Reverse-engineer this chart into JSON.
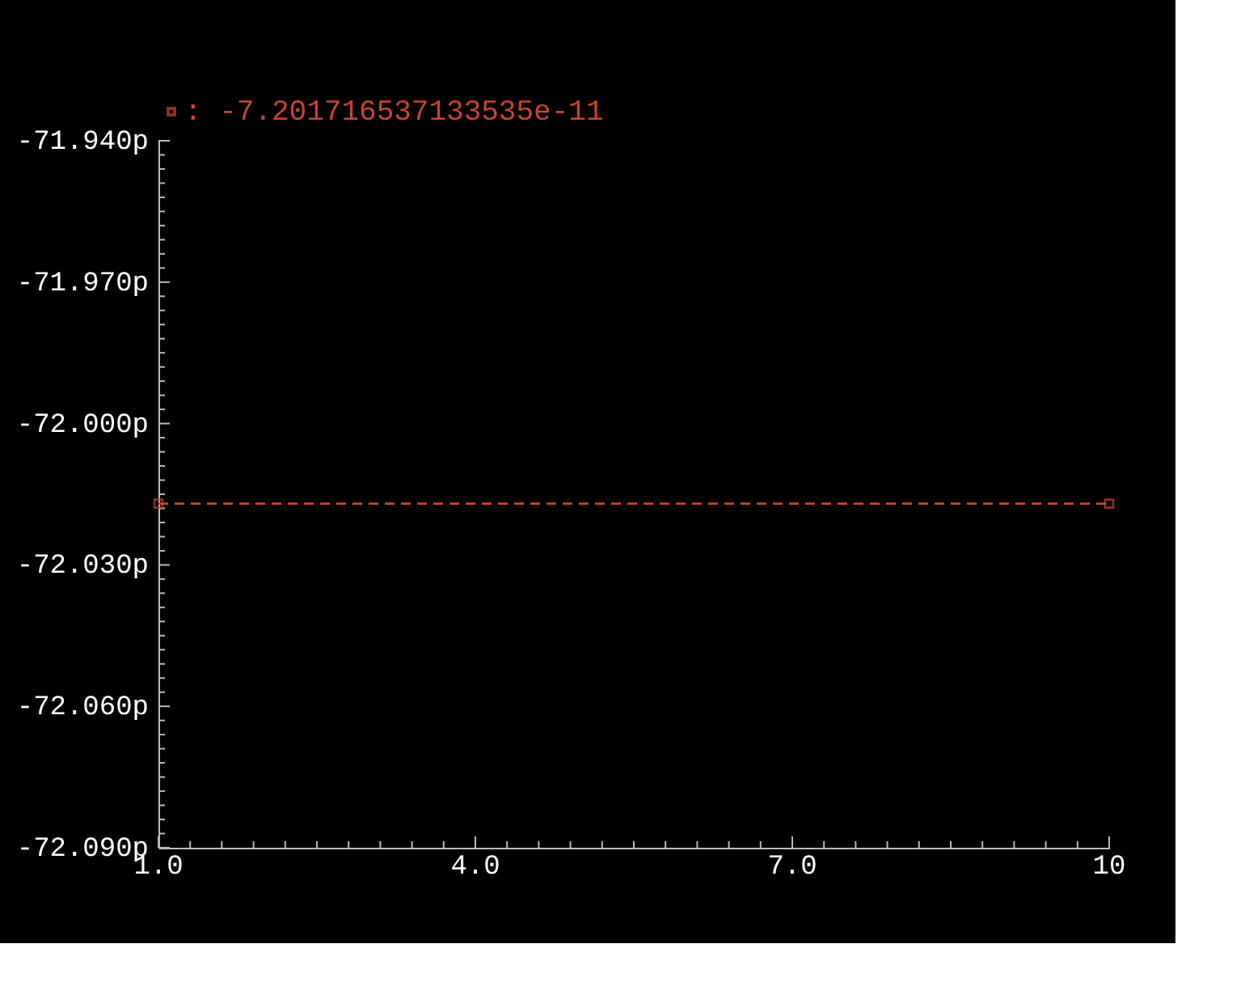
{
  "chart_data": {
    "type": "line",
    "x": [
      1,
      10
    ],
    "series": [
      {
        "name": ": -7.201716537133535e-11",
        "color": "#c8452f",
        "values": [
          -72.017,
          -72.017
        ]
      }
    ],
    "xlim": [
      1,
      10
    ],
    "xticks": [
      {
        "value": 1,
        "label": "1.0"
      },
      {
        "value": 1.3,
        "label": null
      },
      {
        "value": 1.6,
        "label": null
      },
      {
        "value": 1.9,
        "label": null
      },
      {
        "value": 2.2,
        "label": null
      },
      {
        "value": 2.5,
        "label": null
      },
      {
        "value": 2.8,
        "label": null
      },
      {
        "value": 3.1,
        "label": null
      },
      {
        "value": 3.4,
        "label": null
      },
      {
        "value": 3.7,
        "label": null
      },
      {
        "value": 4,
        "label": "4.0"
      },
      {
        "value": 4.3,
        "label": null
      },
      {
        "value": 4.6,
        "label": null
      },
      {
        "value": 4.9,
        "label": null
      },
      {
        "value": 5.2,
        "label": null
      },
      {
        "value": 5.5,
        "label": null
      },
      {
        "value": 5.8,
        "label": null
      },
      {
        "value": 6.1,
        "label": null
      },
      {
        "value": 6.4,
        "label": null
      },
      {
        "value": 6.7,
        "label": null
      },
      {
        "value": 7,
        "label": "7.0"
      },
      {
        "value": 7.3,
        "label": null
      },
      {
        "value": 7.6,
        "label": null
      },
      {
        "value": 7.9,
        "label": null
      },
      {
        "value": 8.2,
        "label": null
      },
      {
        "value": 8.5,
        "label": null
      },
      {
        "value": 8.8,
        "label": null
      },
      {
        "value": 9.1,
        "label": null
      },
      {
        "value": 9.4,
        "label": null
      },
      {
        "value": 9.7,
        "label": null
      },
      {
        "value": 10,
        "label": "10"
      }
    ],
    "ylim": [
      -72.09,
      -71.94
    ],
    "yticks": [
      {
        "value": -71.94,
        "label": "-71.940p"
      },
      {
        "value": -71.943,
        "label": null
      },
      {
        "value": -71.946,
        "label": null
      },
      {
        "value": -71.949,
        "label": null
      },
      {
        "value": -71.952,
        "label": null
      },
      {
        "value": -71.955,
        "label": null
      },
      {
        "value": -71.958,
        "label": null
      },
      {
        "value": -71.961,
        "label": null
      },
      {
        "value": -71.964,
        "label": null
      },
      {
        "value": -71.967,
        "label": null
      },
      {
        "value": -71.97,
        "label": "-71.970p"
      },
      {
        "value": -71.973,
        "label": null
      },
      {
        "value": -71.976,
        "label": null
      },
      {
        "value": -71.979,
        "label": null
      },
      {
        "value": -71.982,
        "label": null
      },
      {
        "value": -71.985,
        "label": null
      },
      {
        "value": -71.988,
        "label": null
      },
      {
        "value": -71.991,
        "label": null
      },
      {
        "value": -71.994,
        "label": null
      },
      {
        "value": -71.997,
        "label": null
      },
      {
        "value": -72.0,
        "label": "-72.000p"
      },
      {
        "value": -72.003,
        "label": null
      },
      {
        "value": -72.006,
        "label": null
      },
      {
        "value": -72.009,
        "label": null
      },
      {
        "value": -72.012,
        "label": null
      },
      {
        "value": -72.015,
        "label": null
      },
      {
        "value": -72.018,
        "label": null
      },
      {
        "value": -72.021,
        "label": null
      },
      {
        "value": -72.024,
        "label": null
      },
      {
        "value": -72.027,
        "label": null
      },
      {
        "value": -72.03,
        "label": "-72.030p"
      },
      {
        "value": -72.033,
        "label": null
      },
      {
        "value": -72.036,
        "label": null
      },
      {
        "value": -72.039,
        "label": null
      },
      {
        "value": -72.042,
        "label": null
      },
      {
        "value": -72.045,
        "label": null
      },
      {
        "value": -72.048,
        "label": null
      },
      {
        "value": -72.051,
        "label": null
      },
      {
        "value": -72.054,
        "label": null
      },
      {
        "value": -72.057,
        "label": null
      },
      {
        "value": -72.06,
        "label": "-72.060p"
      },
      {
        "value": -72.063,
        "label": null
      },
      {
        "value": -72.066,
        "label": null
      },
      {
        "value": -72.069,
        "label": null
      },
      {
        "value": -72.072,
        "label": null
      },
      {
        "value": -72.075,
        "label": null
      },
      {
        "value": -72.078,
        "label": null
      },
      {
        "value": -72.081,
        "label": null
      },
      {
        "value": -72.084,
        "label": null
      },
      {
        "value": -72.087,
        "label": null
      },
      {
        "value": -72.09,
        "label": "-72.090p"
      }
    ],
    "grid": false,
    "legend": "top left",
    "marker": "square",
    "line_style": "dashed"
  }
}
